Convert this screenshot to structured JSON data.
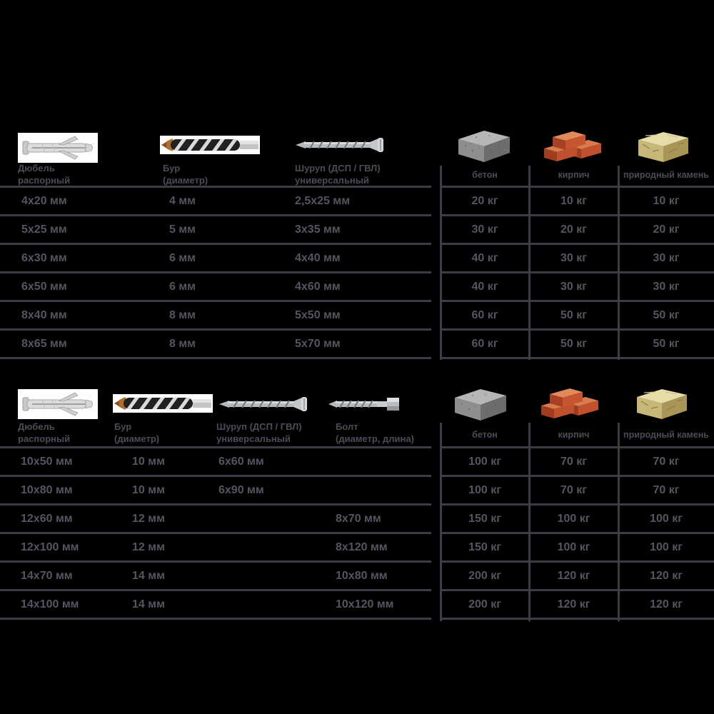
{
  "colors": {
    "background": "#000000",
    "text": "#555561",
    "label": "#4c4c57",
    "line": "#3c3c47",
    "brick_front": "#c0512c",
    "concrete_front": "#8e8e8e",
    "stone_front": "#c8b878"
  },
  "units": {
    "length": "мм",
    "weight": "кг"
  },
  "table1": {
    "headers": [
      {
        "icon": "dowel-image",
        "line1": "Дюбель",
        "line2": "распорный"
      },
      {
        "icon": "drill-bit-image",
        "line1": "Бур",
        "line2": "(диаметр)"
      },
      {
        "icon": "screw-image",
        "line1": "Шуруп (ДСП / ГВЛ)",
        "line2": "универсальный"
      },
      {
        "icon": "concrete-image",
        "line1": "бетон",
        "line2": ""
      },
      {
        "icon": "bricks-image",
        "line1": "кирпич",
        "line2": ""
      },
      {
        "icon": "stone-image",
        "line1": "природный камень",
        "line2": ""
      }
    ],
    "rows": [
      [
        "4x20 мм",
        "4 мм",
        "2,5x25 мм",
        "20 кг",
        "10 кг",
        "10 кг"
      ],
      [
        "5x25 мм",
        "5 мм",
        "3x35 мм",
        "30 кг",
        "20 кг",
        "20 кг"
      ],
      [
        "6x30 мм",
        "6 мм",
        "4x40 мм",
        "40 кг",
        "30 кг",
        "30 кг"
      ],
      [
        "6x50 мм",
        "6 мм",
        "4x60 мм",
        "40 кг",
        "30 кг",
        "30 кг"
      ],
      [
        "8x40 мм",
        "8 мм",
        "5x50 мм",
        "60 кг",
        "50 кг",
        "50 кг"
      ],
      [
        "8x65 мм",
        "8 мм",
        "5x70 мм",
        "60 кг",
        "50 кг",
        "50 кг"
      ]
    ]
  },
  "table2": {
    "headers": [
      {
        "icon": "dowel-image",
        "line1": "Дюбель",
        "line2": "распорный"
      },
      {
        "icon": "drill-bit-image",
        "line1": "Бур",
        "line2": "(диаметр)"
      },
      {
        "icon": "screw-image",
        "line1": "Шуруп (ДСП / ГВЛ)",
        "line2": "универсальный"
      },
      {
        "icon": "bolt-image",
        "line1": "Болт",
        "line2": "(диаметр, длина)"
      },
      {
        "icon": "concrete-image",
        "line1": "бетон",
        "line2": ""
      },
      {
        "icon": "bricks-image",
        "line1": "кирпич",
        "line2": ""
      },
      {
        "icon": "stone-image",
        "line1": "природный камень",
        "line2": ""
      }
    ],
    "rows": [
      [
        "10x50 мм",
        "10 мм",
        "6x60 мм",
        "",
        "100 кг",
        "70 кг",
        "70 кг"
      ],
      [
        "10x80 мм",
        "10 мм",
        "6x90 мм",
        "",
        "100 кг",
        "70 кг",
        "70 кг"
      ],
      [
        "12x60 мм",
        "12 мм",
        "",
        "8x70 мм",
        "150 кг",
        "100 кг",
        "100 кг"
      ],
      [
        "12x100 мм",
        "12 мм",
        "",
        "8x120 мм",
        "150 кг",
        "100 кг",
        "100 кг"
      ],
      [
        "14x70 мм",
        "14 мм",
        "",
        "10x80 мм",
        "200 кг",
        "120 кг",
        "120 кг"
      ],
      [
        "14x100 мм",
        "14 мм",
        "",
        "10x120 мм",
        "200 кг",
        "120 кг",
        "120 кг"
      ]
    ]
  }
}
